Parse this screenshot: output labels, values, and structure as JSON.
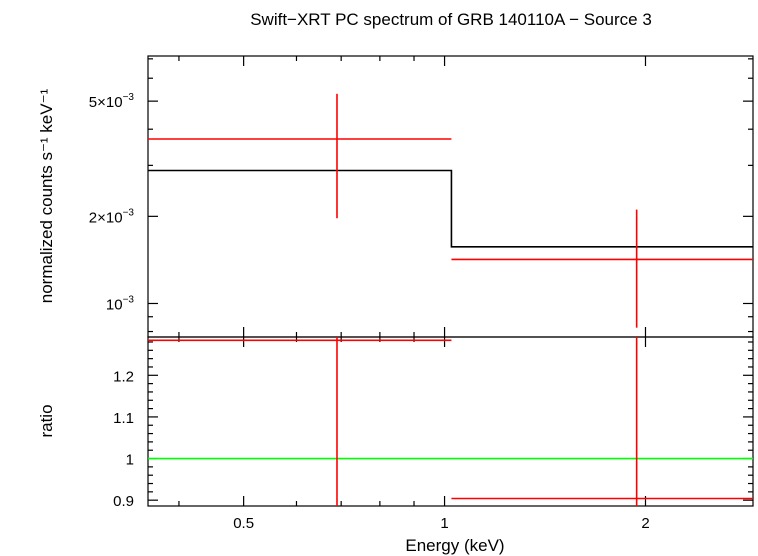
{
  "chart_data": [
    {
      "type": "line",
      "panel": "spectrum",
      "title": "Swift−XRT PC spectrum of GRB 140110A − Source 3",
      "ylabel": "normalized counts s⁻¹ keV⁻¹",
      "xlabel": "",
      "xscale": "log",
      "yscale": "log",
      "xlim": [
        0.3595,
        2.898
      ],
      "ylim": [
        0.000766,
        0.00716
      ],
      "yticks": [
        {
          "value": 0.005,
          "label_mantissa": "5×10",
          "label_exp": "−3"
        },
        {
          "value": 0.002,
          "label_mantissa": "2×10",
          "label_exp": "−3"
        },
        {
          "value": 0.001,
          "label_mantissa": "10",
          "label_exp": "−3"
        }
      ],
      "series": [
        {
          "type": "errorbar",
          "color": "#ff0000",
          "points": [
            {
              "x": 0.69,
              "xlo": 0.3595,
              "xhi": 1.024,
              "y": 0.0037,
              "ylo": 0.00197,
              "yhi": 0.0053
            },
            {
              "x": 1.94,
              "xlo": 1.024,
              "xhi": 2.898,
              "y": 0.00142,
              "ylo": 0.000825,
              "yhi": 0.00211
            }
          ]
        },
        {
          "type": "step",
          "color": "#000000",
          "bins": [
            {
              "xlo": 0.3595,
              "xhi": 1.024,
              "y": 0.00288
            },
            {
              "xlo": 1.024,
              "xhi": 2.898,
              "y": 0.00157
            }
          ]
        }
      ]
    },
    {
      "type": "line",
      "panel": "ratio",
      "xlabel": "Energy (keV)",
      "ylabel": "ratio",
      "xscale": "log",
      "xlim": [
        0.3595,
        2.898
      ],
      "ylim": [
        0.886,
        1.292
      ],
      "xticks": [
        {
          "value": 0.5,
          "label": "0.5"
        },
        {
          "value": 1,
          "label": "1"
        },
        {
          "value": 2,
          "label": "2"
        }
      ],
      "yticks": [
        {
          "value": 0.9,
          "label": "0.9"
        },
        {
          "value": 1.0,
          "label": "1"
        },
        {
          "value": 1.1,
          "label": "1.1"
        },
        {
          "value": 1.2,
          "label": "1.2"
        }
      ],
      "reference_line": {
        "y": 1.0,
        "color": "#00ff00"
      },
      "series": [
        {
          "type": "errorbar",
          "color": "#ff0000",
          "points": [
            {
              "x": 0.69,
              "xlo": 0.3595,
              "xhi": 1.024,
              "y": 1.284,
              "ylo": 0.886,
              "yhi": 1.292
            },
            {
              "x": 1.94,
              "xlo": 1.024,
              "xhi": 2.898,
              "y": 0.904,
              "ylo": 0.886,
              "yhi": 1.292
            }
          ]
        }
      ]
    }
  ]
}
